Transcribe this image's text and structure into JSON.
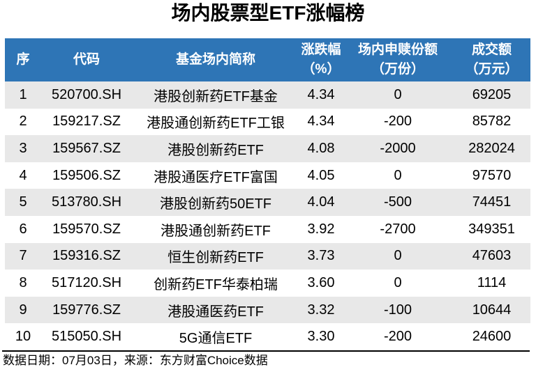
{
  "chart_data": {
    "type": "table",
    "title": "场内股票型ETF涨幅榜",
    "columns": [
      "序",
      "代码",
      "基金场内简称",
      "涨跌幅\n（%）",
      "场内申赎份额\n（万份）",
      "成交额\n（万元）"
    ],
    "rows": [
      [
        "1",
        "520700.SH",
        "港股创新药ETF基金",
        "4.34",
        "0",
        "69205"
      ],
      [
        "2",
        "159217.SZ",
        "港股通创新药ETF工银",
        "4.34",
        "-200",
        "85782"
      ],
      [
        "3",
        "159567.SZ",
        "港股创新药ETF",
        "4.08",
        "-2000",
        "282024"
      ],
      [
        "4",
        "159506.SZ",
        "港股通医疗ETF富国",
        "4.05",
        "0",
        "97570"
      ],
      [
        "5",
        "513780.SH",
        "港股创新药50ETF",
        "4.04",
        "-500",
        "74451"
      ],
      [
        "6",
        "159570.SZ",
        "港股通创新药ETF",
        "3.92",
        "-2700",
        "349351"
      ],
      [
        "7",
        "159316.SZ",
        "恒生创新药ETF",
        "3.73",
        "0",
        "47603"
      ],
      [
        "8",
        "517120.SH",
        "创新药ETF华泰柏瑞",
        "3.60",
        "0",
        "1114"
      ],
      [
        "9",
        "159776.SZ",
        "港股通医药ETF",
        "3.32",
        "-100",
        "10644"
      ],
      [
        "10",
        "515050.SH",
        "5G通信ETF",
        "3.30",
        "-200",
        "24600"
      ]
    ],
    "layout": {
      "striped_rows": "odd",
      "header_position": "top",
      "gridlines": "none"
    }
  },
  "footer": {
    "note": "数据日期：07月03日，来源：东方财富Choice数据"
  },
  "colors": {
    "header_bg": "#2E75B6",
    "header_text": "#FFFFFF",
    "row_stripe": "#E8E8E8",
    "row_text": "#000000",
    "divider": "#000000",
    "background": "#FFFFFF"
  }
}
